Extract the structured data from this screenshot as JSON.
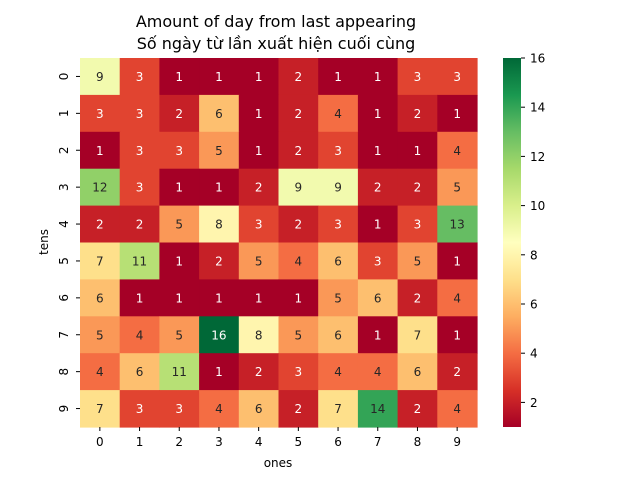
{
  "chart_data": {
    "type": "heatmap",
    "title_lines": [
      "Amount of day from last appearing",
      "Số ngày từ lần xuất hiện cuối cùng"
    ],
    "xlabel": "ones",
    "ylabel": "tens",
    "x_categories": [
      "0",
      "1",
      "2",
      "3",
      "4",
      "5",
      "6",
      "7",
      "8",
      "9"
    ],
    "y_categories": [
      "0",
      "1",
      "2",
      "3",
      "4",
      "5",
      "6",
      "7",
      "8",
      "9"
    ],
    "values": [
      [
        9,
        3,
        1,
        1,
        1,
        2,
        1,
        1,
        3,
        3
      ],
      [
        3,
        3,
        2,
        6,
        1,
        2,
        4,
        1,
        2,
        1
      ],
      [
        1,
        3,
        3,
        5,
        1,
        2,
        3,
        1,
        1,
        4
      ],
      [
        12,
        3,
        1,
        1,
        2,
        9,
        9,
        2,
        2,
        5
      ],
      [
        2,
        2,
        5,
        8,
        3,
        2,
        3,
        1,
        3,
        13
      ],
      [
        7,
        11,
        1,
        2,
        5,
        4,
        6,
        3,
        5,
        1
      ],
      [
        6,
        1,
        1,
        1,
        1,
        1,
        5,
        6,
        2,
        4
      ],
      [
        5,
        4,
        5,
        16,
        8,
        5,
        6,
        1,
        7,
        1
      ],
      [
        4,
        6,
        11,
        1,
        2,
        3,
        4,
        4,
        6,
        2
      ],
      [
        7,
        3,
        3,
        4,
        6,
        2,
        7,
        14,
        2,
        4
      ]
    ],
    "colormap": "RdYlGn",
    "vmin": 1,
    "vmax": 16,
    "colorbar_ticks": [
      "2",
      "4",
      "6",
      "8",
      "10",
      "12",
      "14",
      "16"
    ],
    "colorbar": true,
    "annotated": true
  }
}
